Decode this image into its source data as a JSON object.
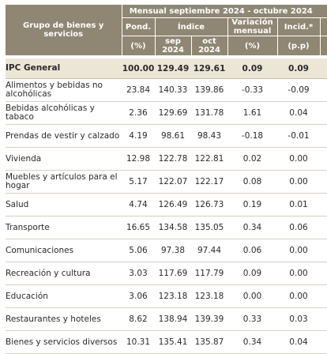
{
  "table": {
    "title": "Mensual septiembre 2024 - octubre 2024",
    "col_group": "Grupo de bienes y servicios",
    "col_pond": "Pond.",
    "col_pond_unit": "(%)",
    "col_indice": "Índice",
    "col_sep": "sep\n2024",
    "col_oct": "oct\n2024",
    "col_var": "Variación mensual",
    "col_var_unit": "(%)",
    "col_incid": "Incid.*",
    "col_incid_unit": "(p.p)",
    "rows": [
      {
        "cat": "IPC General",
        "pond": "100.00",
        "sep": "129.49",
        "oct": "129.61",
        "var": "0.09",
        "incid": "0.09",
        "highlight": true
      },
      {
        "cat": "Alimentos y bebidas no alcohólicas",
        "pond": "23.84",
        "sep": "140.33",
        "oct": "139.86",
        "var": "-0.33",
        "incid": "-0.09"
      },
      {
        "cat": "Bebidas alcohólicas y tabaco",
        "pond": "2.36",
        "sep": "129.69",
        "oct": "131.78",
        "var": "1.61",
        "incid": "0.04"
      },
      {
        "cat": "Prendas de vestir y calzado",
        "pond": "4.19",
        "sep": "98.61",
        "oct": "98.43",
        "var": "-0.18",
        "incid": "-0.01"
      },
      {
        "cat": "Vivienda",
        "pond": "12.98",
        "sep": "122.78",
        "oct": "122.81",
        "var": "0.02",
        "incid": "0.00"
      },
      {
        "cat": "Muebles y artículos para el hogar",
        "pond": "5.17",
        "sep": "122.07",
        "oct": "122.17",
        "var": "0.08",
        "incid": "0.00"
      },
      {
        "cat": "Salud",
        "pond": "4.74",
        "sep": "126.49",
        "oct": "126.73",
        "var": "0.19",
        "incid": "0.01"
      },
      {
        "cat": "Transporte",
        "pond": "16.65",
        "sep": "134.58",
        "oct": "135.05",
        "var": "0.34",
        "incid": "0.06"
      },
      {
        "cat": "Comunicaciones",
        "pond": "5.06",
        "sep": "97.38",
        "oct": "97.44",
        "var": "0.06",
        "incid": "0.00"
      },
      {
        "cat": "Recreación y cultura",
        "pond": "3.03",
        "sep": "117.69",
        "oct": "117.79",
        "var": "0.09",
        "incid": "0.00"
      },
      {
        "cat": "Educación",
        "pond": "3.06",
        "sep": "123.18",
        "oct": "123.18",
        "var": "0.00",
        "incid": "0.00"
      },
      {
        "cat": "Restaurantes y hoteles",
        "pond": "8.62",
        "sep": "138.94",
        "oct": "139.39",
        "var": "0.33",
        "incid": "0.03"
      },
      {
        "cat": "Bienes y servicios diversos",
        "pond": "10.31",
        "sep": "135.41",
        "oct": "135.87",
        "var": "0.34",
        "incid": "0.04"
      }
    ]
  }
}
